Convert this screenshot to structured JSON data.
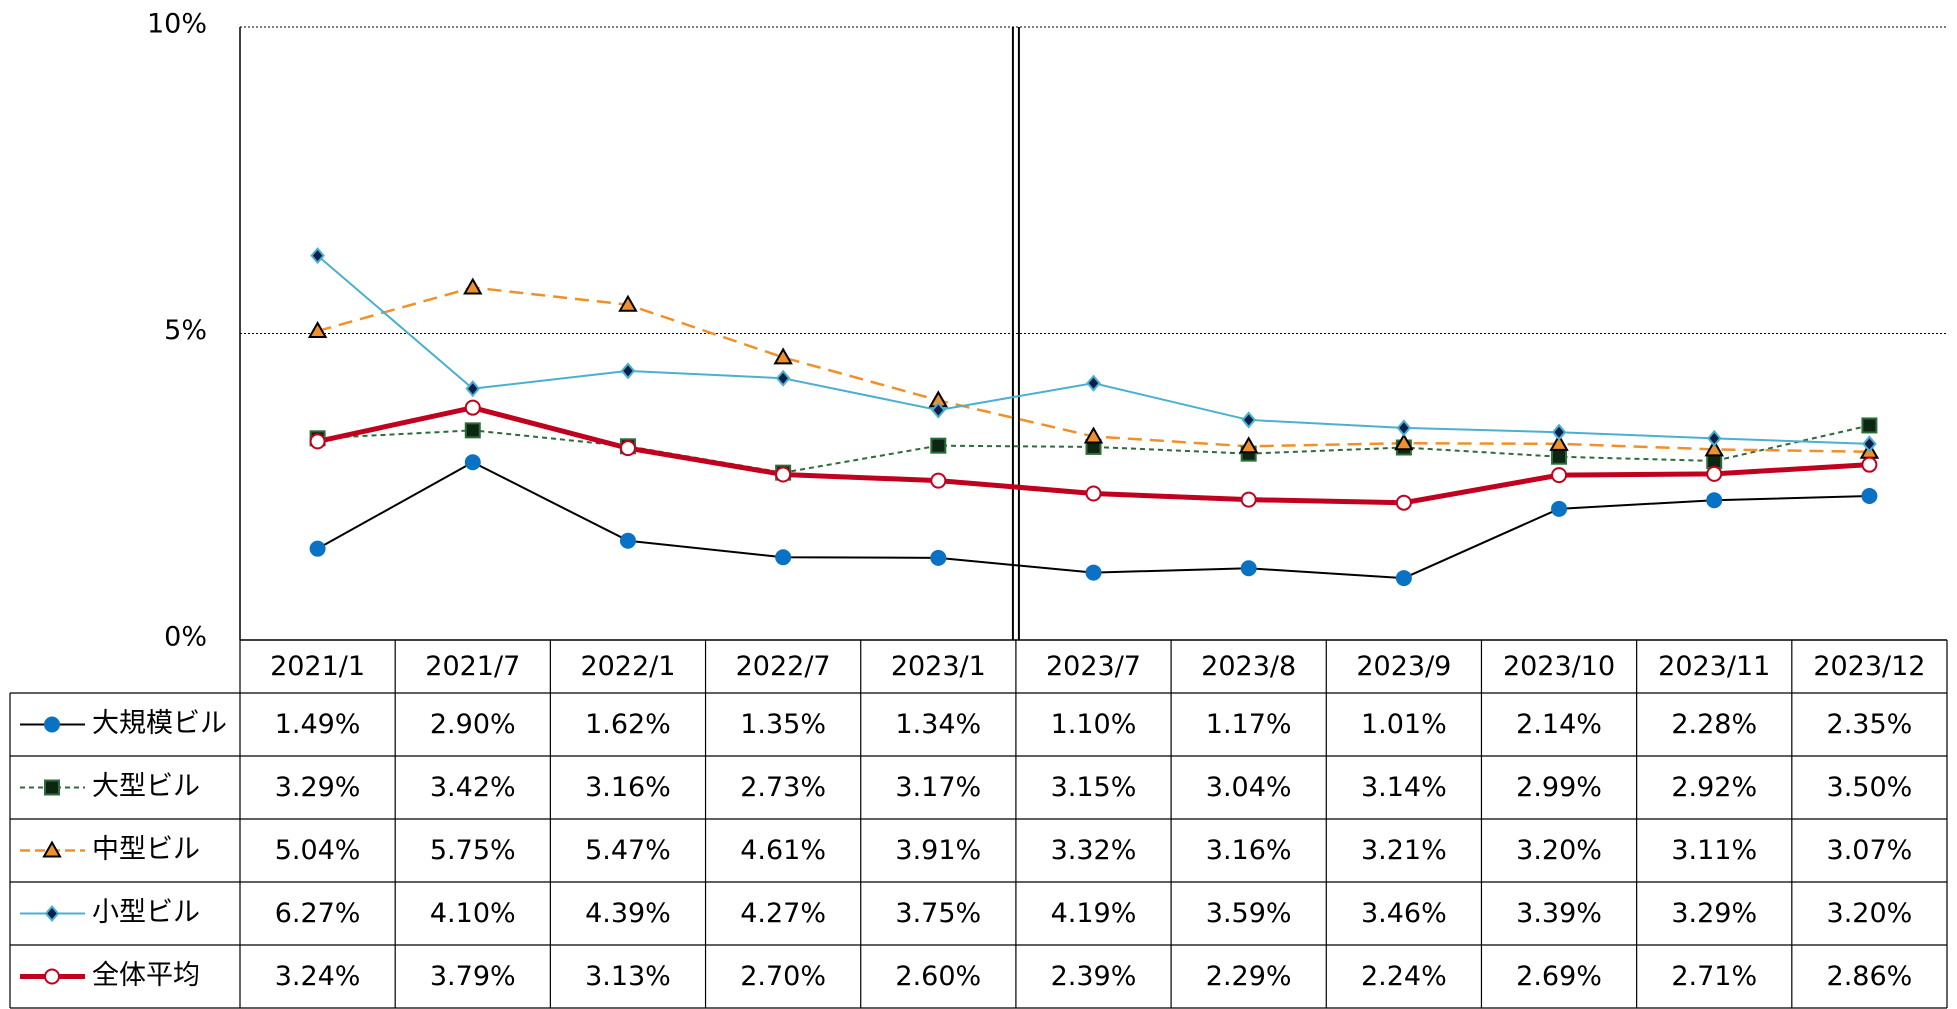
{
  "chart_data": {
    "type": "line",
    "categories": [
      "2021/1",
      "2021/7",
      "2022/1",
      "2022/7",
      "2023/1",
      "2023/7",
      "2023/8",
      "2023/9",
      "2023/10",
      "2023/11",
      "2023/12"
    ],
    "series": [
      {
        "name": "大規模ビル",
        "color": "#000000",
        "values": [
          1.49,
          2.9,
          1.62,
          1.35,
          1.34,
          1.1,
          1.17,
          1.01,
          2.14,
          2.28,
          2.35
        ],
        "value_labels": [
          "1.49%",
          "2.90%",
          "1.62%",
          "1.35%",
          "1.34%",
          "1.10%",
          "1.17%",
          "1.01%",
          "2.14%",
          "2.28%",
          "2.35%"
        ]
      },
      {
        "name": "大型ビル",
        "color": "#2e6b3a",
        "values": [
          3.29,
          3.42,
          3.16,
          2.73,
          3.17,
          3.15,
          3.04,
          3.14,
          2.99,
          2.92,
          3.5
        ],
        "value_labels": [
          "3.29%",
          "3.42%",
          "3.16%",
          "2.73%",
          "3.17%",
          "3.15%",
          "3.04%",
          "3.14%",
          "2.99%",
          "2.92%",
          "3.50%"
        ]
      },
      {
        "name": "中型ビル",
        "color": "#f0902a",
        "values": [
          5.04,
          5.75,
          5.47,
          4.61,
          3.91,
          3.32,
          3.16,
          3.21,
          3.2,
          3.11,
          3.07
        ],
        "value_labels": [
          "5.04%",
          "5.75%",
          "5.47%",
          "4.61%",
          "3.91%",
          "3.32%",
          "3.16%",
          "3.21%",
          "3.20%",
          "3.11%",
          "3.07%"
        ]
      },
      {
        "name": "小型ビル",
        "color": "#4bb0d0",
        "values": [
          6.27,
          4.1,
          4.39,
          4.27,
          3.75,
          4.19,
          3.59,
          3.46,
          3.39,
          3.29,
          3.2
        ],
        "value_labels": [
          "6.27%",
          "4.10%",
          "4.39%",
          "4.27%",
          "3.75%",
          "4.19%",
          "3.59%",
          "3.46%",
          "3.39%",
          "3.29%",
          "3.20%"
        ]
      },
      {
        "name": "全体平均",
        "color": "#c0001e",
        "values": [
          3.24,
          3.79,
          3.13,
          2.7,
          2.6,
          2.39,
          2.29,
          2.24,
          2.69,
          2.71,
          2.86
        ],
        "value_labels": [
          "3.24%",
          "3.79%",
          "3.13%",
          "2.70%",
          "2.60%",
          "2.39%",
          "2.29%",
          "2.24%",
          "2.69%",
          "2.71%",
          "2.86%"
        ]
      }
    ],
    "ylim": [
      0,
      10
    ],
    "yticks": [
      {
        "value": 0,
        "label": "0%"
      },
      {
        "value": 5,
        "label": "5%"
      },
      {
        "value": 10,
        "label": "10%"
      }
    ],
    "grid": true
  }
}
